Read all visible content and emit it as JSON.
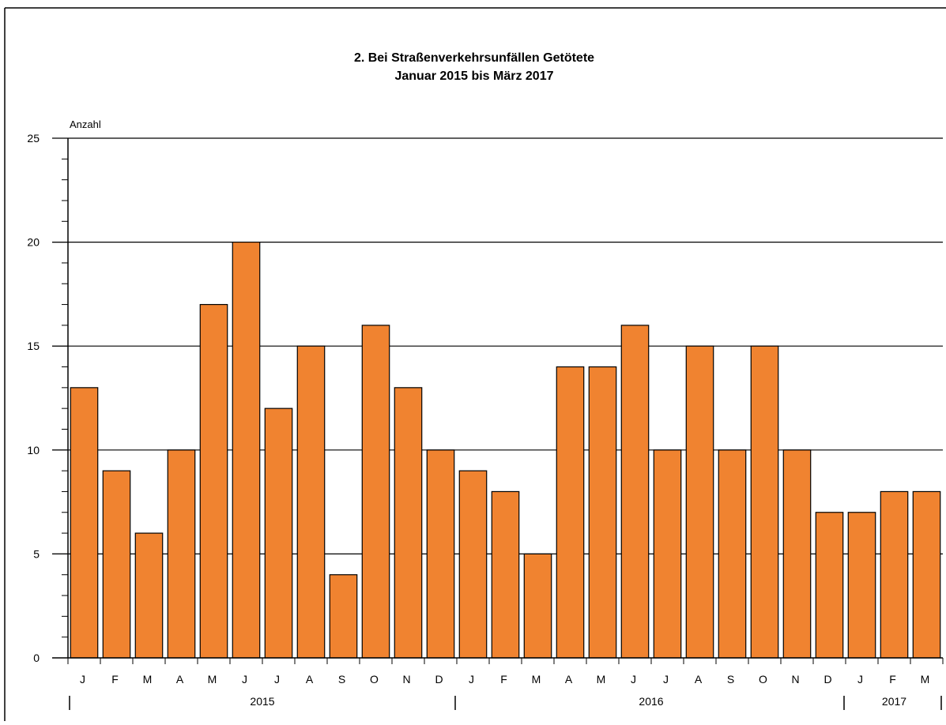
{
  "chart_data": {
    "type": "bar",
    "title": "2. Bei Straßenverkehrsunfällen Getötete",
    "subtitle": "Januar 2015 bis März 2017",
    "ylabel": "Anzahl",
    "ylim": [
      0,
      25
    ],
    "yticks": [
      0,
      5,
      10,
      15,
      20,
      25
    ],
    "grid": true,
    "bar_color": "#f08330",
    "categories": [
      "J",
      "F",
      "M",
      "A",
      "M",
      "J",
      "J",
      "A",
      "S",
      "O",
      "N",
      "D",
      "J",
      "F",
      "M",
      "A",
      "M",
      "J",
      "J",
      "A",
      "S",
      "O",
      "N",
      "D",
      "J",
      "F",
      "M"
    ],
    "values": [
      13,
      9,
      6,
      10,
      17,
      20,
      12,
      15,
      4,
      16,
      13,
      10,
      9,
      8,
      5,
      14,
      14,
      16,
      10,
      15,
      10,
      15,
      10,
      7,
      7,
      8,
      8
    ],
    "year_groups": [
      {
        "label": "2015",
        "count": 12
      },
      {
        "label": "2016",
        "count": 12
      },
      {
        "label": "2017",
        "count": 3
      }
    ]
  }
}
